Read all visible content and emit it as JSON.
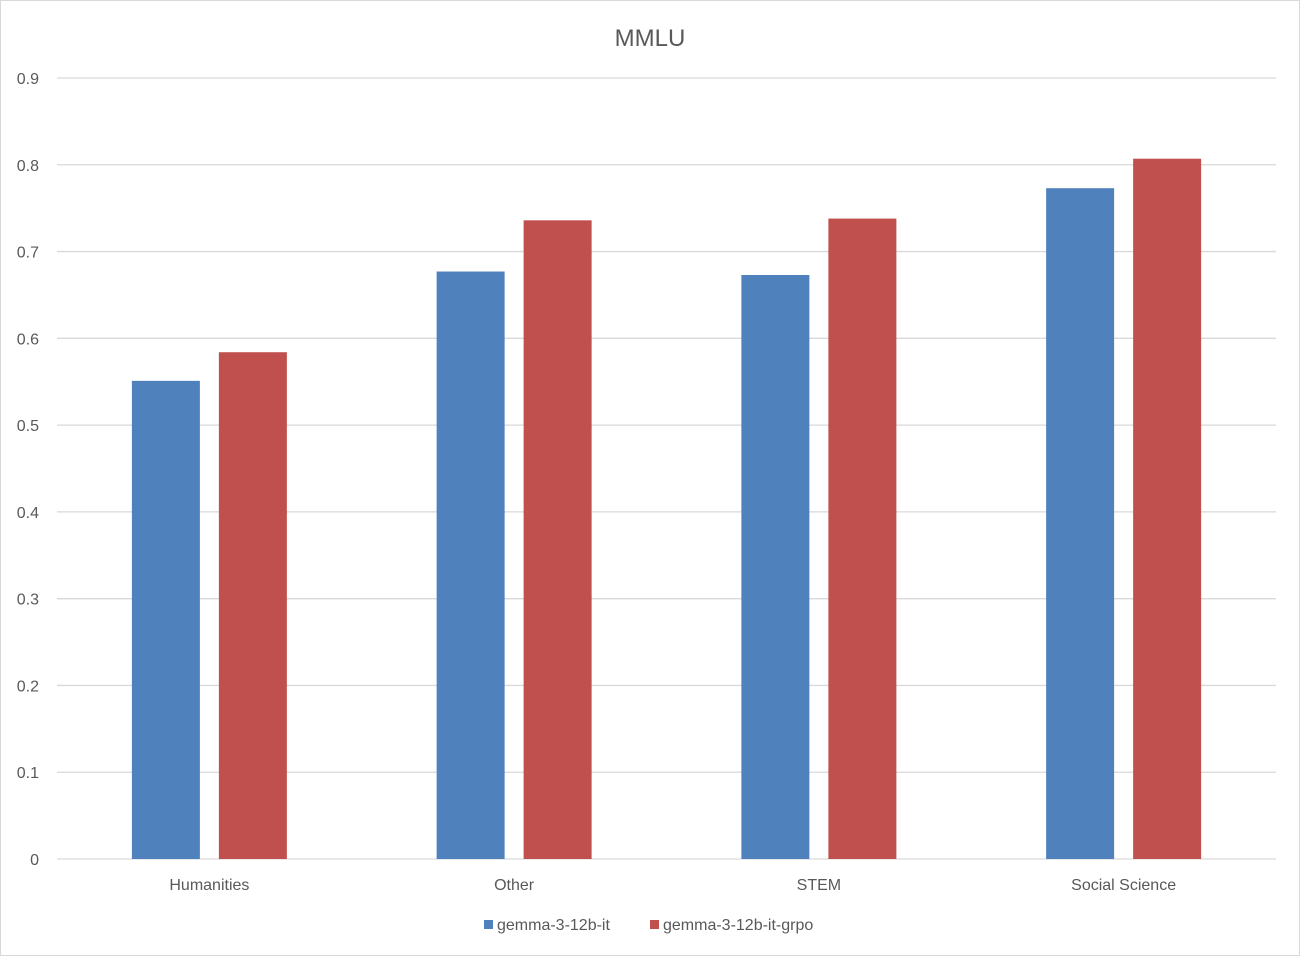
{
  "chart_data": {
    "type": "bar",
    "title": "MMLU",
    "xlabel": "",
    "ylabel": "",
    "categories": [
      "Humanities",
      "Other",
      "STEM",
      "Social Science"
    ],
    "series": [
      {
        "name": "gemma-3-12b-it",
        "color": "#4f81bd",
        "values": [
          0.551,
          0.677,
          0.673,
          0.773
        ]
      },
      {
        "name": "gemma-3-12b-it-grpo",
        "color": "#c0504d",
        "values": [
          0.584,
          0.736,
          0.738,
          0.807
        ]
      }
    ],
    "ylim": [
      0,
      0.9
    ],
    "yticks": [
      "0",
      "0.1",
      "0.2",
      "0.3",
      "0.4",
      "0.5",
      "0.6",
      "0.7",
      "0.8",
      "0.9"
    ],
    "grid": true,
    "legend_position": "bottom",
    "gridline_color": "#d9d9d9"
  }
}
